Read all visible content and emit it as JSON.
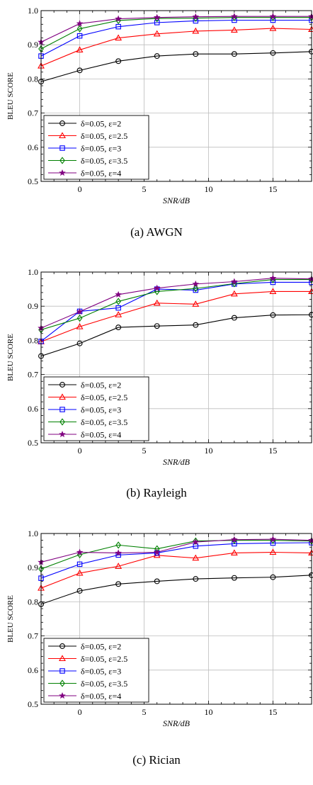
{
  "chart_data": [
    {
      "type": "line",
      "caption": "(a) AWGN",
      "xlabel": "SNR/dB",
      "ylabel": "BLEU SCORE",
      "xlim": [
        -3,
        18
      ],
      "ylim": [
        0.5,
        1.0
      ],
      "xticks": [
        0,
        5,
        10,
        15
      ],
      "yticks": [
        0.5,
        0.6,
        0.7,
        0.8,
        0.9,
        1.0
      ],
      "x": [
        -3,
        0,
        3,
        6,
        9,
        12,
        15,
        18
      ],
      "grid": true,
      "legend_position": "lower-left",
      "series": [
        {
          "name": "δ=0.05, ε=2",
          "color": "#000000",
          "marker": "circle",
          "values": [
            0.792,
            0.825,
            0.852,
            0.867,
            0.873,
            0.873,
            0.876,
            0.88
          ]
        },
        {
          "name": "δ=0.05, ε=2.5",
          "color": "#ff0000",
          "marker": "triangle",
          "values": [
            0.838,
            0.885,
            0.92,
            0.932,
            0.94,
            0.943,
            0.948,
            0.945
          ]
        },
        {
          "name": "δ=0.05, ε=3",
          "color": "#0000ff",
          "marker": "square",
          "values": [
            0.867,
            0.926,
            0.953,
            0.965,
            0.97,
            0.972,
            0.972,
            0.972
          ]
        },
        {
          "name": "δ=0.05, ε=3.5",
          "color": "#008000",
          "marker": "diamond",
          "values": [
            0.888,
            0.947,
            0.971,
            0.977,
            0.978,
            0.98,
            0.98,
            0.98
          ]
        },
        {
          "name": "δ=0.05, ε=4",
          "color": "#800080",
          "marker": "star",
          "values": [
            0.908,
            0.962,
            0.976,
            0.98,
            0.982,
            0.983,
            0.983,
            0.983
          ]
        }
      ]
    },
    {
      "type": "line",
      "caption": "(b) Rayleigh",
      "xlabel": "SNR/dB",
      "ylabel": "BLEU SCORE",
      "xlim": [
        -3,
        18
      ],
      "ylim": [
        0.5,
        1.0
      ],
      "xticks": [
        0,
        5,
        10,
        15
      ],
      "yticks": [
        0.5,
        0.6,
        0.7,
        0.8,
        0.9,
        1.0
      ],
      "x": [
        -3,
        0,
        3,
        6,
        9,
        12,
        15,
        18
      ],
      "grid": true,
      "legend_position": "lower-left",
      "series": [
        {
          "name": "δ=0.05, ε=2",
          "color": "#000000",
          "marker": "circle",
          "values": [
            0.754,
            0.791,
            0.838,
            0.842,
            0.845,
            0.866,
            0.874,
            0.875
          ]
        },
        {
          "name": "δ=0.05, ε=2.5",
          "color": "#ff0000",
          "marker": "triangle",
          "values": [
            0.796,
            0.84,
            0.875,
            0.909,
            0.906,
            0.936,
            0.943,
            0.943
          ]
        },
        {
          "name": "δ=0.05, ε=3",
          "color": "#0000ff",
          "marker": "square",
          "values": [
            0.797,
            0.885,
            0.895,
            0.95,
            0.947,
            0.965,
            0.97,
            0.97
          ]
        },
        {
          "name": "δ=0.05, ε=3.5",
          "color": "#008000",
          "marker": "diamond",
          "values": [
            0.831,
            0.865,
            0.914,
            0.943,
            0.952,
            0.966,
            0.978,
            0.978
          ]
        },
        {
          "name": "δ=0.05, ε=4",
          "color": "#800080",
          "marker": "star",
          "values": [
            0.836,
            0.884,
            0.934,
            0.953,
            0.965,
            0.972,
            0.982,
            0.98
          ]
        }
      ]
    },
    {
      "type": "line",
      "caption": "(c) Rician",
      "xlabel": "SNR/dB",
      "ylabel": "BLEU SCORE",
      "xlim": [
        -3,
        18
      ],
      "ylim": [
        0.5,
        1.0
      ],
      "xticks": [
        0,
        5,
        10,
        15
      ],
      "yticks": [
        0.5,
        0.6,
        0.7,
        0.8,
        0.9,
        1.0
      ],
      "x": [
        -3,
        0,
        3,
        6,
        9,
        12,
        15,
        18
      ],
      "grid": true,
      "legend_position": "lower-left",
      "series": [
        {
          "name": "δ=0.05, ε=2",
          "color": "#000000",
          "marker": "circle",
          "values": [
            0.793,
            0.832,
            0.852,
            0.86,
            0.867,
            0.87,
            0.872,
            0.878
          ]
        },
        {
          "name": "δ=0.05, ε=2.5",
          "color": "#ff0000",
          "marker": "triangle",
          "values": [
            0.84,
            0.884,
            0.904,
            0.936,
            0.928,
            0.943,
            0.945,
            0.943
          ]
        },
        {
          "name": "δ=0.05, ε=3",
          "color": "#0000ff",
          "marker": "square",
          "values": [
            0.869,
            0.91,
            0.937,
            0.943,
            0.963,
            0.97,
            0.972,
            0.973
          ]
        },
        {
          "name": "δ=0.05, ε=3.5",
          "color": "#008000",
          "marker": "diamond",
          "values": [
            0.896,
            0.938,
            0.966,
            0.955,
            0.978,
            0.98,
            0.98,
            0.978
          ]
        },
        {
          "name": "δ=0.05, ε=4",
          "color": "#800080",
          "marker": "star",
          "values": [
            0.916,
            0.945,
            0.943,
            0.945,
            0.975,
            0.982,
            0.983,
            0.98
          ]
        }
      ]
    }
  ]
}
